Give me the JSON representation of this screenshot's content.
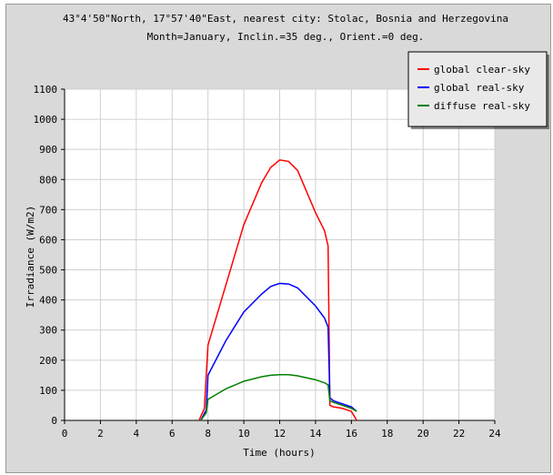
{
  "chart_data": {
    "type": "line",
    "title": "43°4'50\"North, 17°57'40\"East, nearest city: Stolac, Bosnia and Herzegovina",
    "subtitle": "Month=January, Inclin.=35 deg., Orient.=0 deg.",
    "xlabel": "Time (hours)",
    "ylabel": "Irradiance (W/m2)",
    "xlim": [
      0,
      24
    ],
    "ylim": [
      0,
      1100
    ],
    "xticks": [
      "0",
      "2",
      "4",
      "6",
      "8",
      "10",
      "12",
      "14",
      "16",
      "18",
      "20",
      "22",
      "24"
    ],
    "yticks": [
      "0",
      "100",
      "200",
      "300",
      "400",
      "500",
      "600",
      "700",
      "800",
      "900",
      "1000",
      "1100"
    ],
    "grid": true,
    "legend_position": "top-right",
    "series": [
      {
        "name": "global clear-sky",
        "color": "#ff0000",
        "x": [
          7.5,
          7.8,
          8.0,
          9.0,
          10.0,
          11.0,
          11.5,
          12.0,
          12.5,
          13.0,
          14.0,
          14.5,
          14.7,
          14.8,
          15.0,
          15.5,
          16.0,
          16.3
        ],
        "y": [
          0,
          40,
          250,
          450,
          650,
          790,
          840,
          865,
          860,
          830,
          690,
          630,
          580,
          50,
          45,
          40,
          30,
          0
        ]
      },
      {
        "name": "global real-sky",
        "color": "#0000ff",
        "x": [
          7.6,
          7.9,
          8.0,
          9.0,
          10.0,
          11.0,
          11.5,
          12.0,
          12.5,
          13.0,
          14.0,
          14.5,
          14.7,
          14.8,
          15.0,
          15.5,
          16.0,
          16.3
        ],
        "y": [
          0,
          35,
          150,
          265,
          360,
          420,
          445,
          455,
          453,
          440,
          380,
          340,
          310,
          75,
          65,
          55,
          45,
          30
        ]
      },
      {
        "name": "diffuse real-sky",
        "color": "#008000",
        "x": [
          7.6,
          7.9,
          8.0,
          9.0,
          10.0,
          11.0,
          11.5,
          12.0,
          12.5,
          13.0,
          14.0,
          14.5,
          14.7,
          14.8,
          15.0,
          15.5,
          16.0,
          16.3
        ],
        "y": [
          0,
          25,
          70,
          105,
          130,
          145,
          150,
          152,
          152,
          148,
          135,
          125,
          118,
          65,
          60,
          50,
          40,
          30
        ]
      }
    ]
  }
}
